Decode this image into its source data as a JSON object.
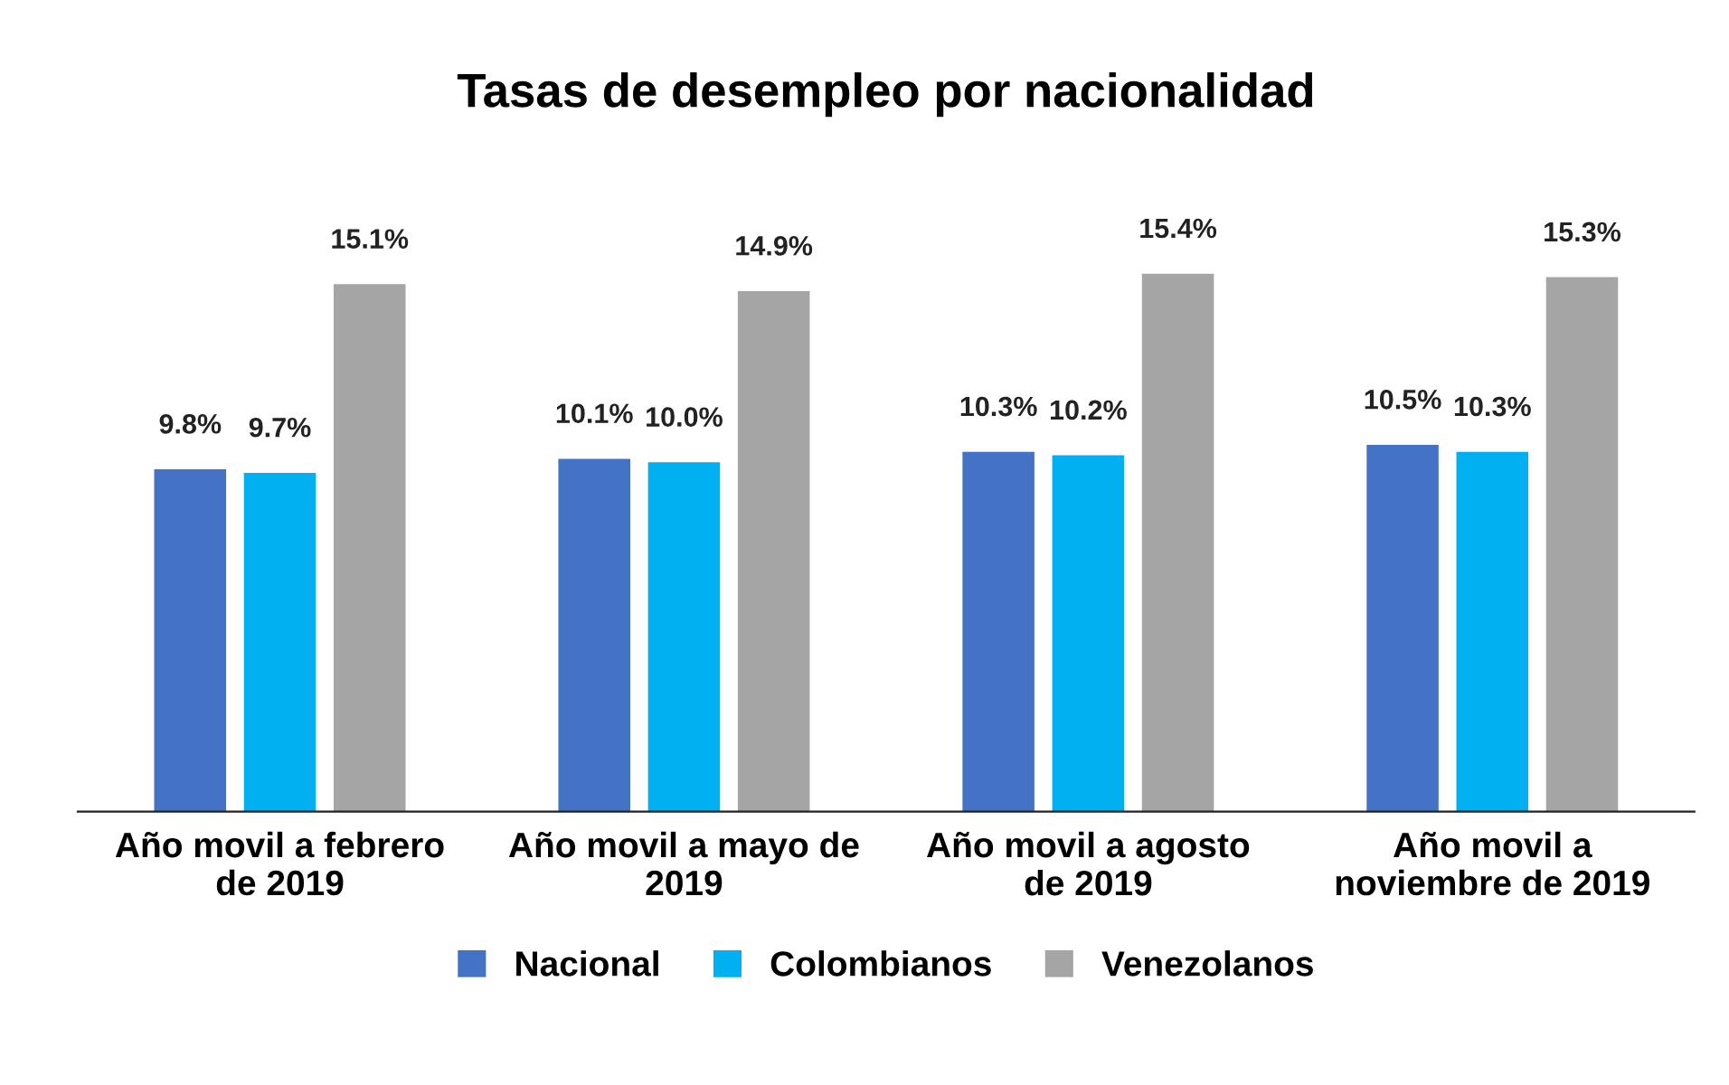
{
  "chart_data": {
    "type": "bar",
    "title": "Tasas de desempleo por nacionalidad",
    "categories": [
      "Año movil a febrero de 2019",
      "Año movil a mayo de 2019",
      "Año movil a agosto de 2019",
      "Año movil a noviembre de 2019"
    ],
    "series": [
      {
        "name": "Nacional",
        "color": "#4472c4",
        "values": [
          9.8,
          10.1,
          10.3,
          10.5
        ],
        "value_labels": [
          "9.8%",
          "10.1%",
          "10.3%",
          "10.5%"
        ]
      },
      {
        "name": "Colombianos",
        "color": "#00b0f0",
        "values": [
          9.7,
          10.0,
          10.2,
          10.3
        ],
        "value_labels": [
          "9.7%",
          "10.0%",
          "10.2%",
          "10.3%"
        ]
      },
      {
        "name": "Venezolanos",
        "color": "#a5a5a5",
        "values": [
          15.1,
          14.9,
          15.4,
          15.3
        ],
        "value_labels": [
          "15.1%",
          "14.9%",
          "15.4%",
          "15.3%"
        ]
      }
    ],
    "grid": false,
    "legend": "bottom",
    "tick_labels": "x"
  }
}
